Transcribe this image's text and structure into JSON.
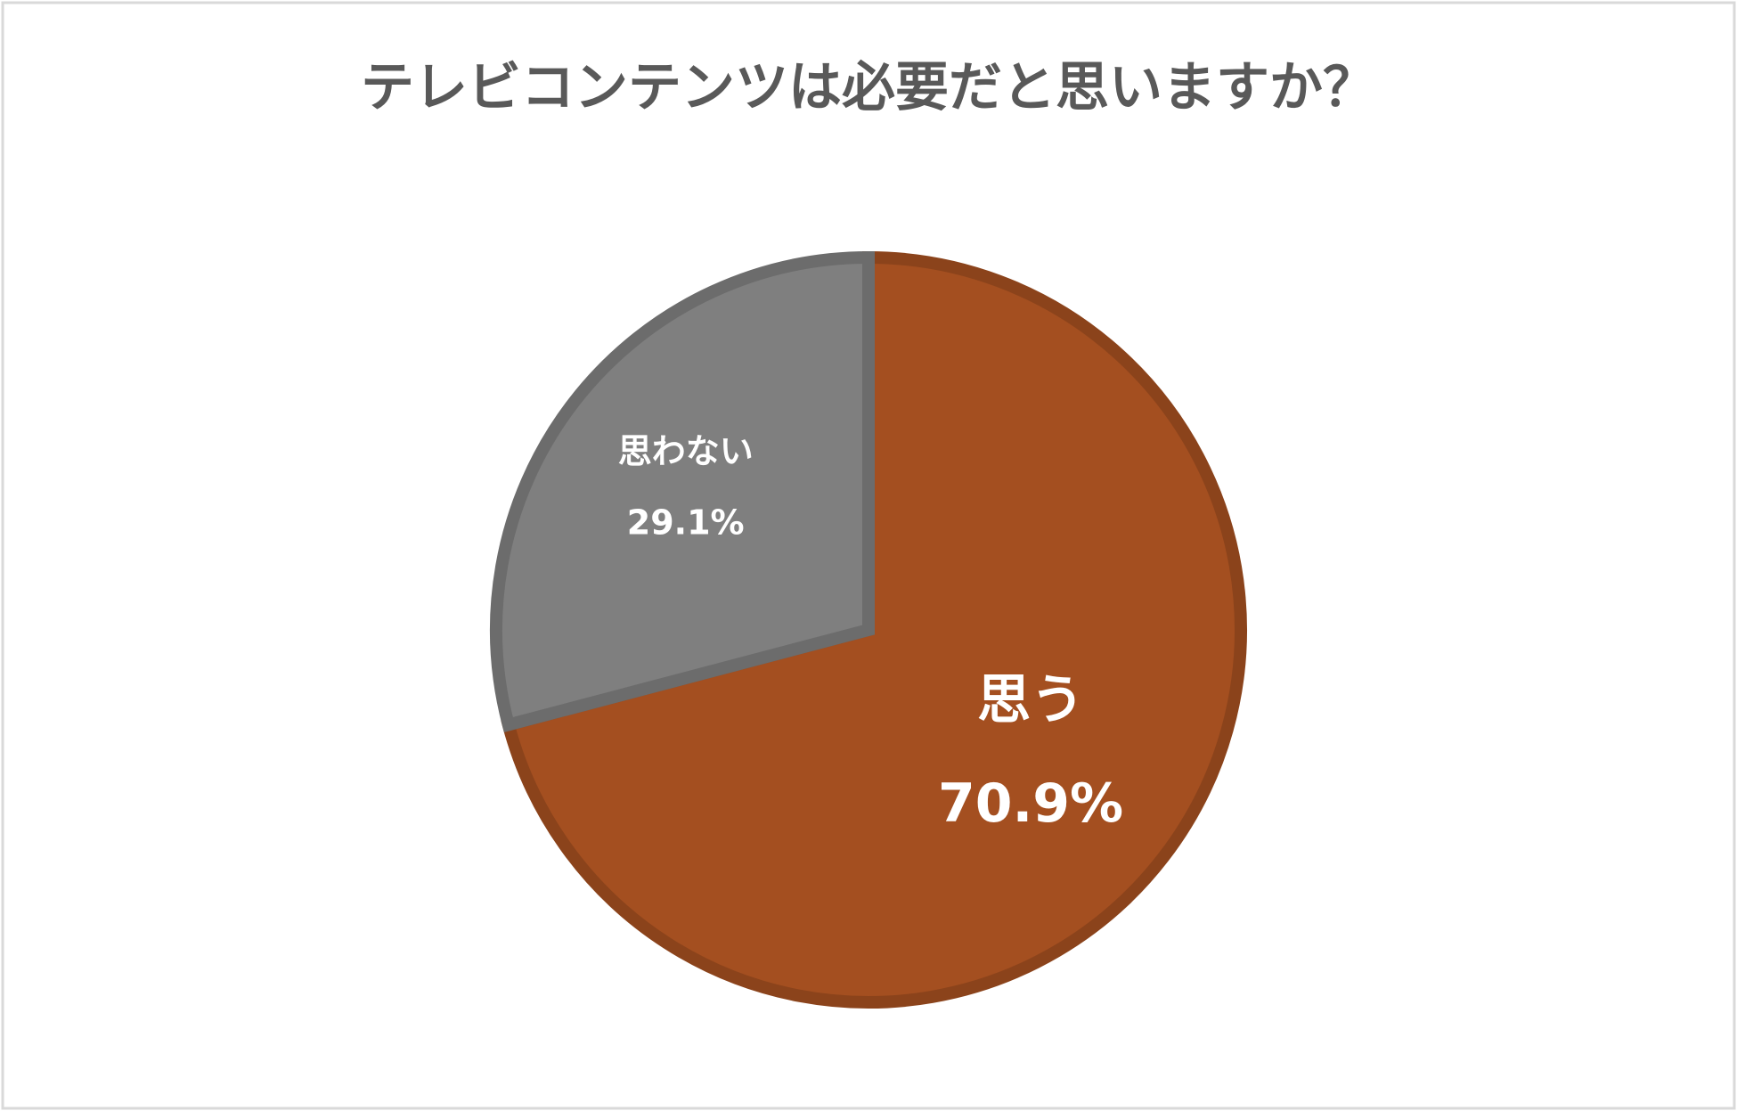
{
  "chart_data": {
    "type": "pie",
    "title": "テレビコンテンツは必要だと思いますか？",
    "categories": [
      "思う",
      "思わない"
    ],
    "values": [
      70.9,
      29.1
    ],
    "value_labels": [
      "70.9%",
      "29.1%"
    ],
    "colors": [
      "#a44f20",
      "#7f7f7f"
    ]
  }
}
